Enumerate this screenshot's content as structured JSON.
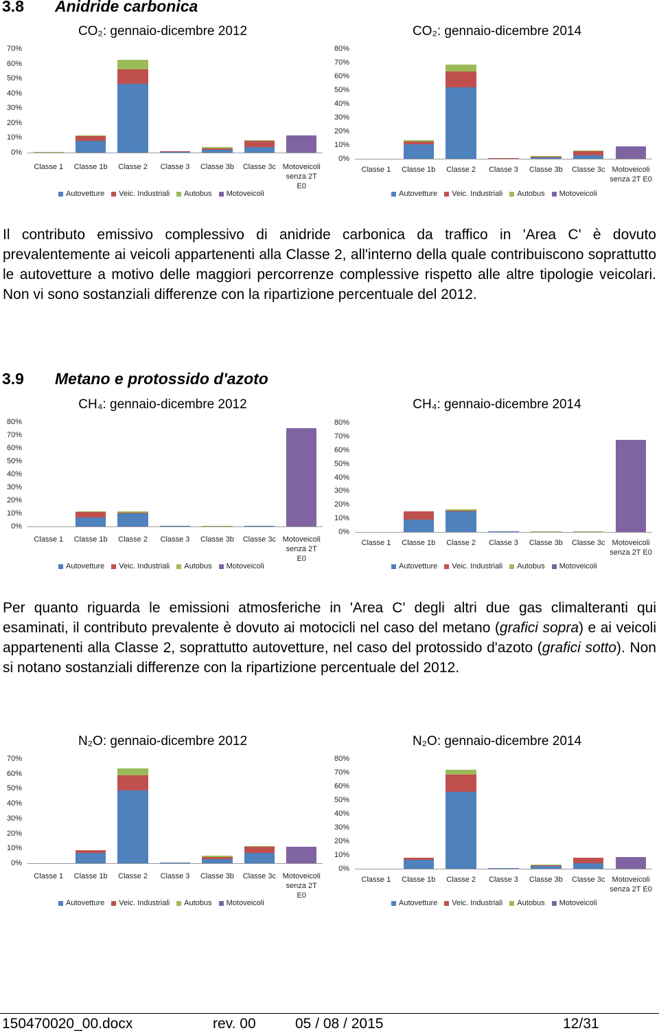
{
  "sections": [
    {
      "number": "3.8",
      "title": "Anidride carbonica",
      "paragraph": "Il contributo emissivo complessivo di anidride carbonica da traffico in 'Area C' è dovuto prevalentemente ai veicoli appartenenti alla Classe 2, all'interno della quale contribuiscono soprattutto le autovetture a motivo delle maggiori percorrenze complessive rispetto alle altre tipologie veicolari. Non vi sono sostanziali differenze con la ripartizione percentuale del 2012."
    },
    {
      "number": "3.9",
      "title": "Metano e protossido d'azoto",
      "paragraph": [
        "Per quanto riguarda le emissioni atmosferiche in 'Area C' degli altri due gas climalteranti qui esaminati, il contributo prevalente è dovuto ai motocicli nel caso del metano (",
        "grafici sopra",
        ") e ai veicoli appartenenti alla Classe 2, soprattutto autovetture, nel caso del protossido d'azoto (",
        "grafici sotto",
        "). Non si notano sostanziali differenze con la ripartizione percentuale del 2012."
      ]
    }
  ],
  "chart_data": [
    {
      "type": "stacked-bar",
      "title": "CO₂: gennaio-dicembre 2012",
      "categories": [
        "Classe 1",
        "Classe 1b",
        "Classe 2",
        "Classe 3",
        "Classe 3b",
        "Classe 3c",
        "Motoveicoli senza 2T E0"
      ],
      "series": [
        {
          "name": "Autovetture",
          "color": "#4f81bd",
          "values": [
            0.2,
            7.9,
            46.3,
            0.5,
            1.9,
            3.7,
            0
          ]
        },
        {
          "name": "Veic. Industriali",
          "color": "#c0504d",
          "values": [
            0,
            3.2,
            9.7,
            0.2,
            0.9,
            4.2,
            0
          ]
        },
        {
          "name": "Autobus",
          "color": "#9bbb59",
          "values": [
            0.3,
            0.3,
            6.5,
            0,
            0.9,
            0.3,
            0
          ]
        },
        {
          "name": "Motoveicoli",
          "color": "#8064a2",
          "values": [
            0,
            0,
            0,
            0,
            0,
            0,
            11.6
          ]
        }
      ],
      "ylim": [
        0,
        70
      ],
      "yticks": [
        {
          "value": 0,
          "label": "0%"
        },
        {
          "value": 10,
          "label": "10%"
        },
        {
          "value": 20,
          "label": "20%"
        },
        {
          "value": 30,
          "label": "30%"
        },
        {
          "value": 40,
          "label": "40%"
        },
        {
          "value": 50,
          "label": "50%"
        },
        {
          "value": 60,
          "label": "60%"
        },
        {
          "value": 70,
          "label": "70%"
        }
      ],
      "legend": "bottom"
    },
    {
      "type": "stacked-bar",
      "title": "CO₂: gennaio-dicembre 2014",
      "categories": [
        "Classe 1",
        "Classe 1b",
        "Classe 2",
        "Classe 3",
        "Classe 3b",
        "Classe 3c",
        "Motoveicoli senza 2T E0"
      ],
      "series": [
        {
          "name": "Autovetture",
          "color": "#4f81bd",
          "values": [
            0.2,
            10.5,
            52,
            0.5,
            1,
            2.5,
            0
          ]
        },
        {
          "name": "Veic. Industriali",
          "color": "#c0504d",
          "values": [
            0,
            2,
            11.5,
            0.2,
            1,
            3.5,
            0
          ]
        },
        {
          "name": "Autobus",
          "color": "#9bbb59",
          "values": [
            0,
            1,
            5,
            0,
            0.2,
            0.2,
            0
          ]
        },
        {
          "name": "Motoveicoli",
          "color": "#8064a2",
          "values": [
            0,
            0,
            0,
            0,
            0,
            0,
            9
          ]
        }
      ],
      "ylim": [
        0,
        80
      ],
      "yticks": [
        {
          "value": 0,
          "label": "0%"
        },
        {
          "value": 10,
          "label": "10%"
        },
        {
          "value": 20,
          "label": "20%"
        },
        {
          "value": 30,
          "label": "30%"
        },
        {
          "value": 40,
          "label": "40%"
        },
        {
          "value": 50,
          "label": "50%"
        },
        {
          "value": 60,
          "label": "60%"
        },
        {
          "value": 70,
          "label": "70%"
        },
        {
          "value": 80,
          "label": "80%"
        }
      ],
      "legend": "bottom"
    },
    {
      "type": "stacked-bar",
      "title": "CH₄: gennaio-dicembre 2012",
      "categories": [
        "Classe 1",
        "Classe 1b",
        "Classe 2",
        "Classe 3",
        "Classe 3b",
        "Classe 3c",
        "Motoveicoli senza 2T E0"
      ],
      "series": [
        {
          "name": "Autovetture",
          "color": "#4f81bd",
          "values": [
            0,
            6.8,
            10,
            0.3,
            0.2,
            0.3,
            0
          ]
        },
        {
          "name": "Veic. Industriali",
          "color": "#c0504d",
          "values": [
            0,
            4.2,
            0.5,
            0,
            0,
            0,
            0
          ]
        },
        {
          "name": "Autobus",
          "color": "#9bbb59",
          "values": [
            0,
            0.5,
            1,
            0,
            0.5,
            0,
            0
          ]
        },
        {
          "name": "Motoveicoli",
          "color": "#8064a2",
          "values": [
            0,
            0,
            0,
            0,
            0,
            0,
            75.3
          ]
        }
      ],
      "ylim": [
        0,
        80
      ],
      "yticks": [
        {
          "value": 0,
          "label": "0%"
        },
        {
          "value": 10,
          "label": "10%"
        },
        {
          "value": 20,
          "label": "20%"
        },
        {
          "value": 30,
          "label": "30%"
        },
        {
          "value": 40,
          "label": "40%"
        },
        {
          "value": 50,
          "label": "50%"
        },
        {
          "value": 60,
          "label": "60%"
        },
        {
          "value": 70,
          "label": "70%"
        },
        {
          "value": 80,
          "label": "80%"
        }
      ],
      "legend": "bottom"
    },
    {
      "type": "stacked-bar",
      "title": "CH₄: gennaio-dicembre 2014",
      "categories": [
        "Classe 1",
        "Classe 1b",
        "Classe 2",
        "Classe 3",
        "Classe 3b",
        "Classe 3c",
        "Motoveicoli senza 2T E0"
      ],
      "series": [
        {
          "name": "Autovetture",
          "color": "#4f81bd",
          "values": [
            0,
            9,
            15,
            0.4,
            0,
            0,
            0
          ]
        },
        {
          "name": "Veic. Industriali",
          "color": "#c0504d",
          "values": [
            0,
            6,
            0.5,
            0,
            0,
            0,
            0
          ]
        },
        {
          "name": "Autobus",
          "color": "#9bbb59",
          "values": [
            0,
            0,
            1,
            0,
            0.5,
            0.5,
            0
          ]
        },
        {
          "name": "Motoveicoli",
          "color": "#8064a2",
          "values": [
            0,
            0,
            0,
            0,
            0,
            0,
            67.3
          ]
        }
      ],
      "ylim": [
        0,
        80
      ],
      "yticks": [
        {
          "value": 0,
          "label": "0%"
        },
        {
          "value": 10,
          "label": "10%"
        },
        {
          "value": 20,
          "label": "20%"
        },
        {
          "value": 30,
          "label": "30%"
        },
        {
          "value": 40,
          "label": "40%"
        },
        {
          "value": 50,
          "label": "50%"
        },
        {
          "value": 60,
          "label": "60%"
        },
        {
          "value": 70,
          "label": "70%"
        },
        {
          "value": 80,
          "label": "80%"
        }
      ],
      "legend": "bottom"
    },
    {
      "type": "stacked-bar",
      "title": "N₂O: gennaio-dicembre 2012",
      "categories": [
        "Classe 1",
        "Classe 1b",
        "Classe 2",
        "Classe 3",
        "Classe 3b",
        "Classe 3c",
        "Motoveicoli senza 2T E0"
      ],
      "series": [
        {
          "name": "Autovetture",
          "color": "#4f81bd",
          "values": [
            0,
            6.9,
            48.8,
            0.6,
            2.8,
            6.9,
            0
          ]
        },
        {
          "name": "Veic. Industriali",
          "color": "#c0504d",
          "values": [
            0,
            1.8,
            10.1,
            0,
            1.4,
            4.1,
            0
          ]
        },
        {
          "name": "Autobus",
          "color": "#9bbb59",
          "values": [
            0,
            0,
            4.6,
            0,
            0.9,
            0.5,
            0
          ]
        },
        {
          "name": "Motoveicoli",
          "color": "#8064a2",
          "values": [
            0,
            0,
            0,
            0,
            0,
            0,
            11
          ]
        }
      ],
      "ylim": [
        0,
        70
      ],
      "yticks": [
        {
          "value": 0,
          "label": "0%"
        },
        {
          "value": 10,
          "label": "10%"
        },
        {
          "value": 20,
          "label": "20%"
        },
        {
          "value": 30,
          "label": "30%"
        },
        {
          "value": 40,
          "label": "40%"
        },
        {
          "value": 50,
          "label": "50%"
        },
        {
          "value": 60,
          "label": "60%"
        },
        {
          "value": 70,
          "label": "70%"
        }
      ],
      "legend": "bottom"
    },
    {
      "type": "stacked-bar",
      "title": "N₂O: gennaio-dicembre 2014",
      "categories": [
        "Classe 1",
        "Classe 1b",
        "Classe 2",
        "Classe 3",
        "Classe 3b",
        "Classe 3c",
        "Motoveicoli senza 2T E0"
      ],
      "series": [
        {
          "name": "Autovetture",
          "color": "#4f81bd",
          "values": [
            0,
            6.5,
            56,
            0.5,
            2,
            4,
            0
          ]
        },
        {
          "name": "Veic. Industriali",
          "color": "#c0504d",
          "values": [
            0,
            1.5,
            12.5,
            0,
            0.5,
            4,
            0
          ]
        },
        {
          "name": "Autobus",
          "color": "#9bbb59",
          "values": [
            0,
            0,
            3.5,
            0,
            0.5,
            0,
            0
          ]
        },
        {
          "name": "Motoveicoli",
          "color": "#8064a2",
          "values": [
            0,
            0,
            0,
            0,
            0,
            0,
            8.5
          ]
        }
      ],
      "ylim": [
        0,
        80
      ],
      "yticks": [
        {
          "value": 0,
          "label": "0%"
        },
        {
          "value": 10,
          "label": "10%"
        },
        {
          "value": 20,
          "label": "20%"
        },
        {
          "value": 30,
          "label": "30%"
        },
        {
          "value": 40,
          "label": "40%"
        },
        {
          "value": 50,
          "label": "50%"
        },
        {
          "value": 60,
          "label": "60%"
        },
        {
          "value": 70,
          "label": "70%"
        },
        {
          "value": 80,
          "label": "80%"
        }
      ],
      "legend": "bottom"
    }
  ],
  "footer": [
    "150470020_00.docx",
    "rev. 00",
    "05 / 08 / 2015",
    "12/31"
  ]
}
